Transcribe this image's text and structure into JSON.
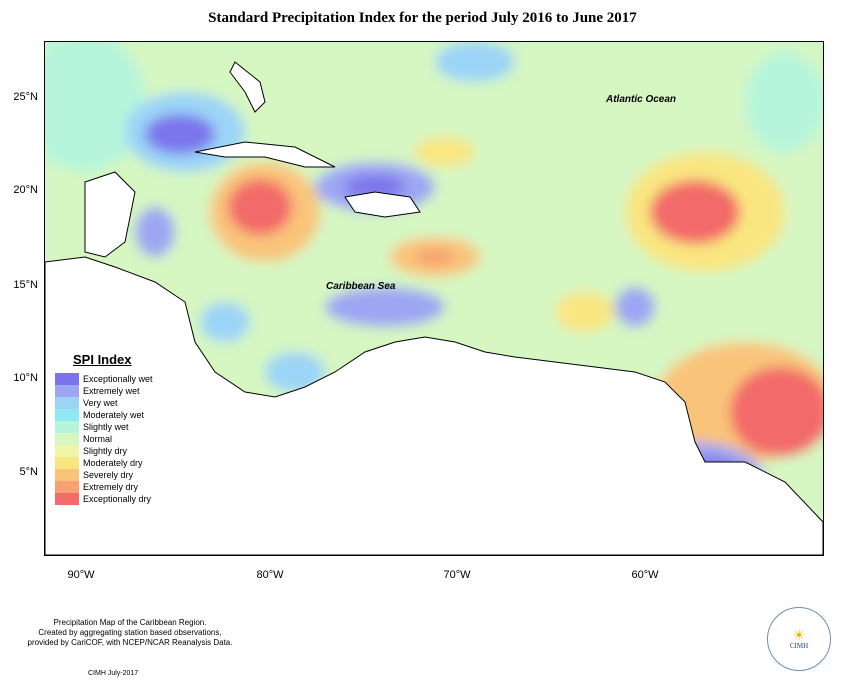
{
  "title": "Standard Precipitation Index for the period July 2016 to June 2017",
  "ocean_labels": {
    "atlantic": "Atlantic Ocean",
    "caribbean": "Caribbean Sea"
  },
  "axes": {
    "lat_ticks": [
      "25°N",
      "20°N",
      "15°N",
      "10°N",
      "5°N"
    ],
    "lon_ticks": [
      "90°W",
      "80°W",
      "70°W",
      "60°W"
    ]
  },
  "legend": {
    "title": "SPI Index",
    "items": [
      {
        "label": "Exceptionally wet",
        "color": "#7b74ec"
      },
      {
        "label": "Extremely wet",
        "color": "#9da6f3"
      },
      {
        "label": "Very wet",
        "color": "#9bd4f7"
      },
      {
        "label": "Moderately wet",
        "color": "#8fe8f3"
      },
      {
        "label": "Slightly wet",
        "color": "#b6f5dc"
      },
      {
        "label": "Normal",
        "color": "#d6f7c2"
      },
      {
        "label": "Slightly dry",
        "color": "#f1f5a7"
      },
      {
        "label": "Moderately dry",
        "color": "#f9e680"
      },
      {
        "label": "Severely dry",
        "color": "#f9c47a"
      },
      {
        "label": "Extremely dry",
        "color": "#f7a072"
      },
      {
        "label": "Exceptionally dry",
        "color": "#f36a6a"
      }
    ]
  },
  "footnote": {
    "line1": "Precipitation Map of the Caribbean Region.",
    "line2": "Created by aggregating station based observations,",
    "line3": "provided by CariCOF, with NCEP/NCAR Reanalysis Data.",
    "date": "CIMH July-2017"
  },
  "logo": {
    "text": "CIMH"
  }
}
